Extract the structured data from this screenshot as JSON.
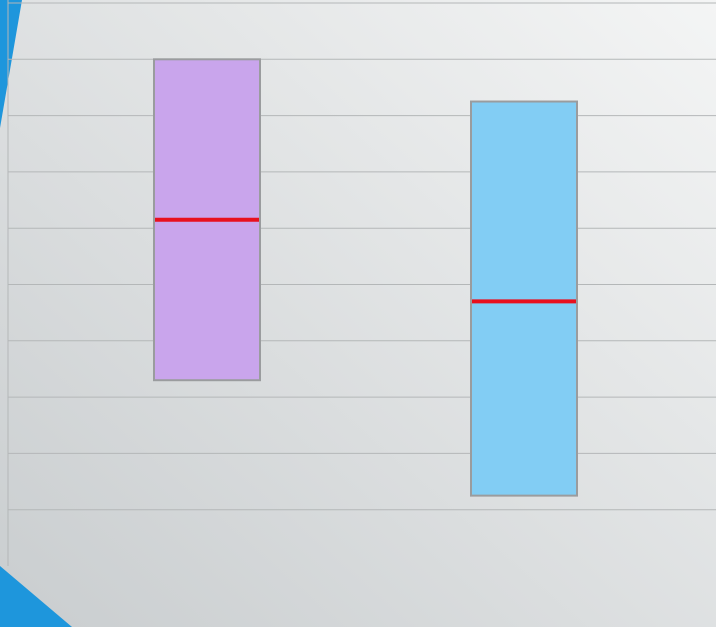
{
  "colors": {
    "background_light": "#f4f5f5",
    "background_dark": "#c9cdcf",
    "gridline": "#b4b7b8",
    "accent": "#1e96dc",
    "box_border": "#9a9c9e",
    "median_line": "#e8101e"
  },
  "chart_data": {
    "type": "box",
    "title": "",
    "xlabel": "",
    "ylabel": "",
    "ylim": [
      0,
      10
    ],
    "grid": true,
    "gridline_values": [
      1,
      2,
      3,
      4,
      5,
      6,
      7,
      8,
      9,
      10
    ],
    "boxes": [
      {
        "q1": 3.3,
        "median": 6.15,
        "q3": 9.0,
        "color": "#c9a5ec"
      },
      {
        "q1": 1.25,
        "median": 4.7,
        "q3": 8.25,
        "color": "#82cdf4"
      }
    ]
  }
}
